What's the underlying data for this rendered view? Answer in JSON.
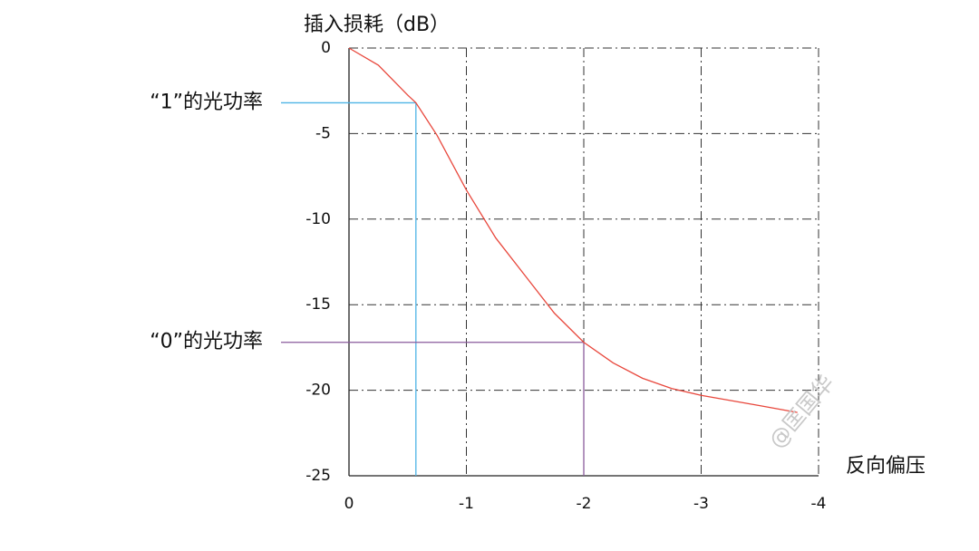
{
  "chart_data": {
    "type": "line",
    "ylabel": "插入损耗（dB）",
    "xlabel": "反向偏压",
    "x": [
      0,
      -0.25,
      -0.5,
      -0.57,
      -0.75,
      -1,
      -1.25,
      -1.5,
      -1.75,
      -2,
      -2.25,
      -2.5,
      -2.75,
      -3,
      -3.5,
      -3.82
    ],
    "series": [
      {
        "color": "#e8473c",
        "values": [
          0,
          -1.0,
          -2.75,
          -3.2,
          -5.1,
          -8.3,
          -11.1,
          -13.3,
          -15.5,
          -17.2,
          -18.4,
          -19.3,
          -19.9,
          -20.3,
          -20.9,
          -21.3
        ]
      }
    ],
    "xlim": [
      0,
      -4
    ],
    "xticks": [
      0,
      -1,
      -2,
      -3,
      -4
    ],
    "ylim": [
      -25,
      0
    ],
    "yticks": [
      0,
      -5,
      -10,
      -15,
      -20,
      -25
    ],
    "grid": true,
    "annotations": [
      {
        "text": "“1”的光功率",
        "x": -0.57,
        "y": -3.2,
        "color": "#4db3e6"
      },
      {
        "text": "“0”的光功率",
        "x": -2,
        "y": -17.2,
        "color": "#8a5a9c"
      }
    ],
    "watermark": "@匡国华"
  }
}
